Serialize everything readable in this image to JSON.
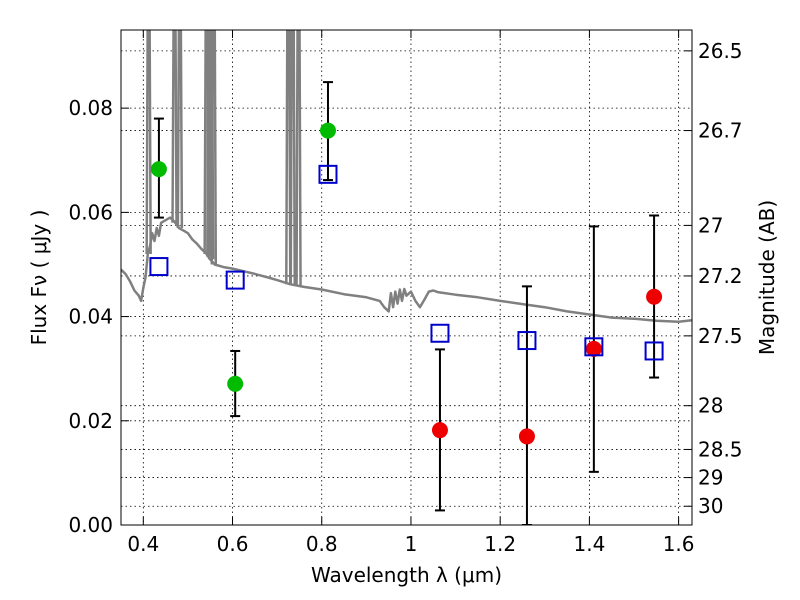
{
  "chart_data": {
    "type": "scatter",
    "xlabel": "Wavelength  λ (μm)",
    "ylabel": "Flux  Fν  ( μJy )",
    "ylabel_right": "Magnitude (AB)",
    "xlim": [
      0.35,
      1.63
    ],
    "ylim": [
      0.0,
      0.095
    ],
    "grid": true,
    "x_ticks": [
      0.4,
      0.6,
      0.8,
      1.0,
      1.2,
      1.4,
      1.6
    ],
    "x_tick_labels": [
      "0.4",
      "0.6",
      "0.8",
      "1",
      "1.2",
      "1.4",
      "1.6"
    ],
    "y_ticks": [
      0.0,
      0.02,
      0.04,
      0.06,
      0.08
    ],
    "y_tick_labels": [
      "0.00",
      "0.02",
      "0.04",
      "0.06",
      "0.08"
    ],
    "mag_ticks": [
      {
        "label": "26.5",
        "flux": 0.091
      },
      {
        "label": "26.7",
        "flux": 0.0757
      },
      {
        "label": "27",
        "flux": 0.0575
      },
      {
        "label": "27.2",
        "flux": 0.0478
      },
      {
        "label": "27.5",
        "flux": 0.0363
      },
      {
        "label": "28",
        "flux": 0.0229
      },
      {
        "label": "28.5",
        "flux": 0.0145
      },
      {
        "label": "29",
        "flux": 0.0091
      },
      {
        "label": "30",
        "flux": 0.0036
      }
    ],
    "colors": {
      "green": "#00bb00",
      "red": "#ee0000",
      "blue": "#0000cc",
      "sed": "#808080"
    },
    "series": [
      {
        "marker": "circle",
        "color": "green",
        "points": [
          {
            "x": 0.435,
            "y": 0.0683,
            "yerr": [
              0.0093,
              0.0097
            ]
          },
          {
            "x": 0.606,
            "y": 0.0271,
            "yerr": [
              0.0062,
              0.0063
            ]
          },
          {
            "x": 0.814,
            "y": 0.0757,
            "yerr": [
              0.0095,
              0.0093
            ]
          }
        ]
      },
      {
        "marker": "circle",
        "color": "red",
        "points": [
          {
            "x": 1.065,
            "y": 0.0182,
            "yerr": [
              0.0154,
              0.0155
            ]
          },
          {
            "x": 1.26,
            "y": 0.017,
            "yerr": [
              0.017,
              0.0288
            ]
          },
          {
            "x": 1.41,
            "y": 0.0338,
            "yerr": [
              0.0236,
              0.0235
            ]
          },
          {
            "x": 1.545,
            "y": 0.0438,
            "yerr": [
              0.0155,
              0.0156
            ]
          }
        ]
      },
      {
        "marker": "square",
        "color": "blue",
        "points": [
          {
            "x": 0.435,
            "y": 0.0496
          },
          {
            "x": 0.606,
            "y": 0.047
          },
          {
            "x": 0.814,
            "y": 0.0673
          },
          {
            "x": 1.065,
            "y": 0.0368
          },
          {
            "x": 1.26,
            "y": 0.0354
          },
          {
            "x": 1.41,
            "y": 0.0342
          },
          {
            "x": 1.545,
            "y": 0.0334
          }
        ]
      }
    ],
    "sed_curve": [
      [
        0.35,
        0.049
      ],
      [
        0.36,
        0.0482
      ],
      [
        0.37,
        0.0468
      ],
      [
        0.38,
        0.045
      ],
      [
        0.39,
        0.044
      ],
      [
        0.395,
        0.043
      ],
      [
        0.4,
        0.0455
      ],
      [
        0.405,
        0.0475
      ],
      [
        0.41,
        0.052
      ],
      [
        0.415,
        0.0535
      ],
      [
        0.42,
        0.056
      ],
      [
        0.425,
        0.0545
      ],
      [
        0.43,
        0.057
      ],
      [
        0.435,
        0.0555
      ],
      [
        0.44,
        0.058
      ],
      [
        0.45,
        0.0585
      ],
      [
        0.46,
        0.059
      ],
      [
        0.47,
        0.0582
      ],
      [
        0.48,
        0.057
      ],
      [
        0.49,
        0.0565
      ],
      [
        0.5,
        0.056
      ],
      [
        0.51,
        0.0548
      ],
      [
        0.52,
        0.054
      ],
      [
        0.53,
        0.053
      ],
      [
        0.54,
        0.0522
      ],
      [
        0.55,
        0.051
      ],
      [
        0.56,
        0.05
      ],
      [
        0.58,
        0.0495
      ],
      [
        0.6,
        0.0492
      ],
      [
        0.62,
        0.0488
      ],
      [
        0.65,
        0.0482
      ],
      [
        0.68,
        0.0475
      ],
      [
        0.7,
        0.047
      ],
      [
        0.73,
        0.0462
      ],
      [
        0.76,
        0.0457
      ],
      [
        0.8,
        0.0452
      ],
      [
        0.85,
        0.0443
      ],
      [
        0.9,
        0.0437
      ],
      [
        0.93,
        0.043
      ],
      [
        0.94,
        0.0418
      ],
      [
        0.95,
        0.041
      ],
      [
        0.955,
        0.0445
      ],
      [
        0.96,
        0.0418
      ],
      [
        0.965,
        0.0448
      ],
      [
        0.97,
        0.0425
      ],
      [
        0.975,
        0.0452
      ],
      [
        0.98,
        0.043
      ],
      [
        0.985,
        0.0453
      ],
      [
        0.99,
        0.044
      ],
      [
        1.0,
        0.0448
      ],
      [
        1.01,
        0.043
      ],
      [
        1.02,
        0.0418
      ],
      [
        1.03,
        0.0432
      ],
      [
        1.04,
        0.0448
      ],
      [
        1.05,
        0.045
      ],
      [
        1.06,
        0.0447
      ],
      [
        1.1,
        0.0442
      ],
      [
        1.15,
        0.0437
      ],
      [
        1.2,
        0.043
      ],
      [
        1.25,
        0.0424
      ],
      [
        1.3,
        0.0418
      ],
      [
        1.35,
        0.041
      ],
      [
        1.4,
        0.0404
      ],
      [
        1.45,
        0.0398
      ],
      [
        1.5,
        0.0396
      ],
      [
        1.55,
        0.0392
      ],
      [
        1.6,
        0.039
      ],
      [
        1.63,
        0.0393
      ]
    ],
    "sed_emission_lines": [
      {
        "x": 0.412,
        "peak": 0.095,
        "base": 0.052
      },
      {
        "x": 0.47,
        "peak": 0.095,
        "base": 0.058
      },
      {
        "x": 0.482,
        "peak": 0.095,
        "base": 0.057
      },
      {
        "x": 0.542,
        "peak": 0.095,
        "base": 0.052
      },
      {
        "x": 0.548,
        "peak": 0.095,
        "base": 0.0515
      },
      {
        "x": 0.552,
        "peak": 0.095,
        "base": 0.051
      },
      {
        "x": 0.558,
        "peak": 0.095,
        "base": 0.05
      },
      {
        "x": 0.725,
        "peak": 0.095,
        "base": 0.0462
      },
      {
        "x": 0.735,
        "peak": 0.095,
        "base": 0.046
      },
      {
        "x": 0.748,
        "peak": 0.095,
        "base": 0.0458
      }
    ]
  }
}
